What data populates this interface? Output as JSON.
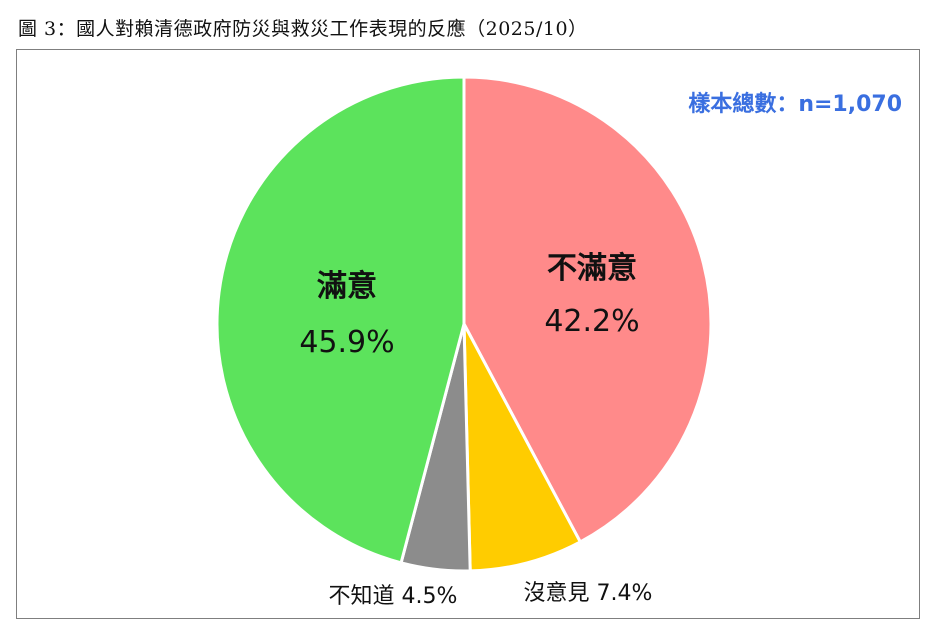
{
  "caption": "圖 3：國人對賴清德政府防災與救災工作表現的反應（2025/10）",
  "sample_label": "樣本總數：n=1,070",
  "chart_data": {
    "type": "pie",
    "start_angle_deg": 0,
    "direction": "clockwise",
    "slices": [
      {
        "label": "不滿意",
        "value": 42.2,
        "display": "42.2%",
        "color": "#ff8a8a"
      },
      {
        "label": "沒意見",
        "value": 7.4,
        "display": "7.4%",
        "color": "#ffcc00"
      },
      {
        "label": "不知道",
        "value": 4.5,
        "display": "4.5%",
        "color": "#8c8c8c"
      },
      {
        "label": "滿意",
        "value": 45.9,
        "display": "45.9%",
        "color": "#5ce35c"
      }
    ]
  }
}
